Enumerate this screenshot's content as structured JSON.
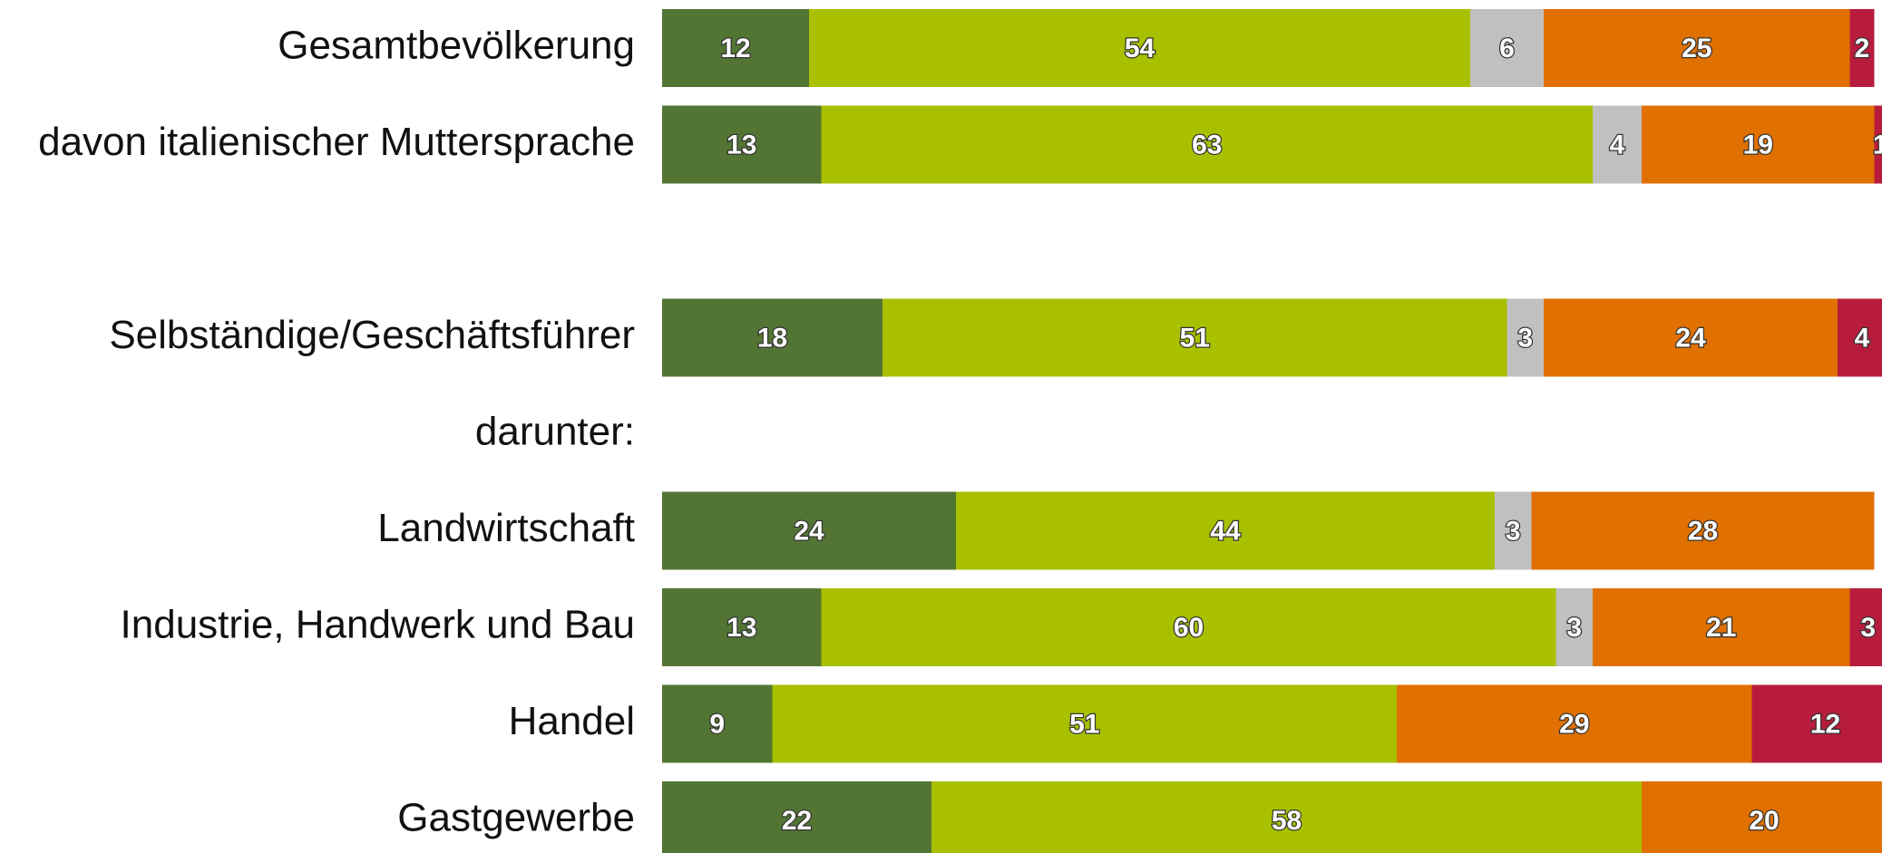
{
  "chart_data": {
    "type": "stacked-barh",
    "categories": [
      "Gesamtbevölkerung",
      "davon italienischer Muttersprache",
      null,
      "Selbständige/Geschäftsführer",
      "darunter:",
      "Landwirtschaft",
      "Industrie, Handwerk und Bau",
      "Handel",
      "Gastgewerbe"
    ],
    "series": [
      {
        "color": "#527534",
        "values": [
          12,
          13,
          null,
          18,
          null,
          24,
          13,
          9,
          22
        ]
      },
      {
        "color": "#a9c000",
        "values": [
          54,
          63,
          null,
          51,
          null,
          44,
          60,
          51,
          58
        ]
      },
      {
        "color": "#c0c0c0",
        "values": [
          6,
          4,
          null,
          3,
          null,
          3,
          3,
          null,
          null
        ]
      },
      {
        "color": "#e07000",
        "values": [
          25,
          19,
          null,
          24,
          null,
          28,
          21,
          29,
          20
        ]
      },
      {
        "color": "#b81c3c",
        "values": [
          2,
          1,
          null,
          4,
          null,
          null,
          3,
          12,
          null
        ]
      }
    ],
    "xlim": [
      0,
      100
    ]
  }
}
